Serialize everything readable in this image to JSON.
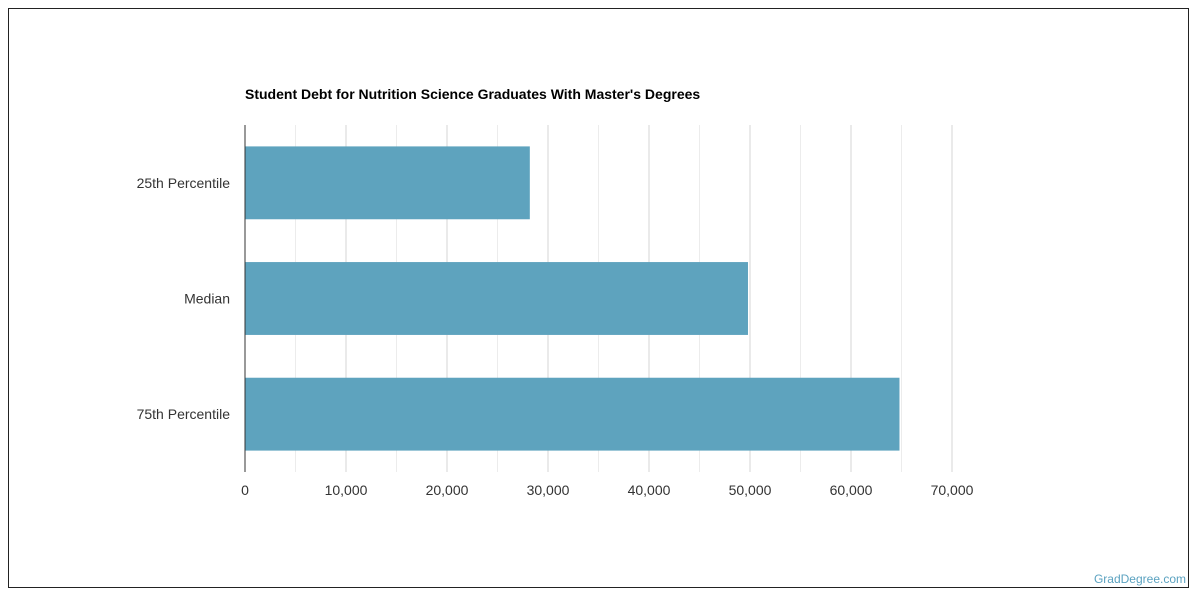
{
  "chart_data": {
    "type": "bar",
    "orientation": "horizontal",
    "title": "Student Debt for Nutrition Science Graduates With Master's Degrees",
    "categories": [
      "25th Percentile",
      "Median",
      "75th Percentile"
    ],
    "values": [
      28200,
      49800,
      64800
    ],
    "xlim": [
      0,
      70000
    ],
    "xticks": [
      0,
      10000,
      20000,
      30000,
      40000,
      50000,
      60000,
      70000
    ],
    "xtick_labels": [
      "0",
      "10,000",
      "20,000",
      "30,000",
      "40,000",
      "50,000",
      "60,000",
      "70,000"
    ],
    "xlabel": "",
    "ylabel": "",
    "grid": true,
    "bar_color": "#5ea3be"
  },
  "watermark": "GradDegree.com"
}
